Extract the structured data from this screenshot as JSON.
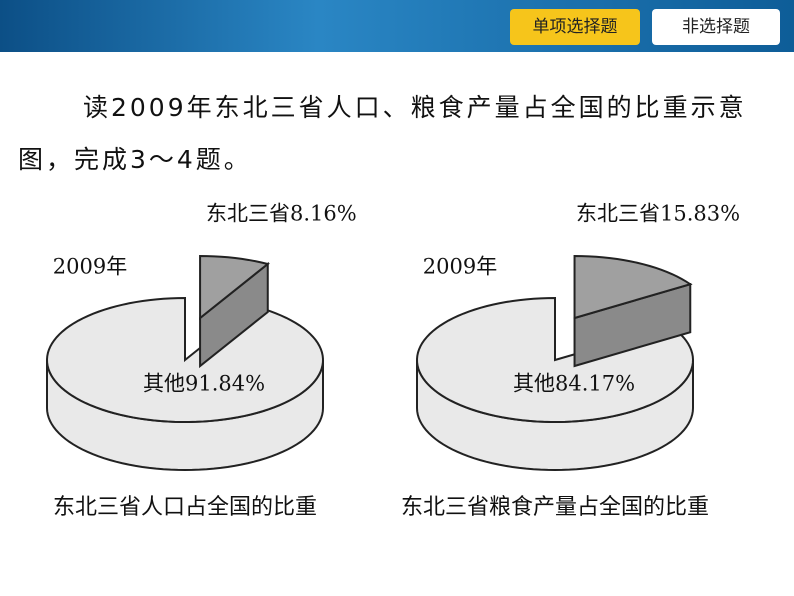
{
  "header": {
    "buttons": [
      "单项选择题",
      "非选择题"
    ]
  },
  "question": "读2009年东北三省人口、粮食产量占全国的比重示意图，完成3～4题。",
  "chart_data": [
    {
      "type": "pie",
      "title": "东北三省人口占全国的比重",
      "annotation": "2009年",
      "categories": [
        "东北三省",
        "其他"
      ],
      "values": [
        8.16,
        91.84
      ],
      "value_labels": [
        "8.16%",
        "91.84%"
      ],
      "colors": [
        "#a0a0a0",
        "#e9e9e9"
      ]
    },
    {
      "type": "pie",
      "title": "东北三省粮食产量占全国的比重",
      "annotation": "2009年",
      "categories": [
        "东北三省",
        "其他"
      ],
      "values": [
        15.83,
        84.17
      ],
      "value_labels": [
        "15.83%",
        "84.17%"
      ],
      "colors": [
        "#a0a0a0",
        "#e9e9e9"
      ]
    }
  ]
}
